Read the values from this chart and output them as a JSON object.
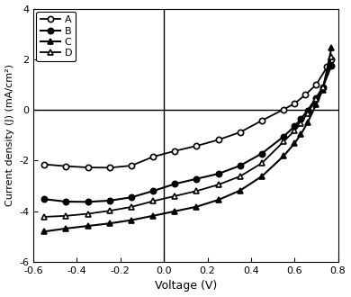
{
  "xlabel": "Voltage (V)",
  "ylabel": "Current density (J) (mA/cm²)",
  "xlim": [
    -0.6,
    0.8
  ],
  "ylim": [
    -6,
    4
  ],
  "xticks": [
    -0.6,
    -0.4,
    -0.2,
    0.0,
    0.2,
    0.4,
    0.6,
    0.8
  ],
  "yticks": [
    -6,
    -4,
    -2,
    0,
    2,
    4
  ],
  "series": {
    "A": {
      "x": [
        -0.55,
        -0.45,
        -0.35,
        -0.25,
        -0.15,
        -0.05,
        0.05,
        0.15,
        0.25,
        0.35,
        0.45,
        0.55,
        0.6,
        0.65,
        0.7,
        0.75,
        0.77
      ],
      "y": [
        -2.15,
        -2.22,
        -2.27,
        -2.28,
        -2.2,
        -1.85,
        -1.62,
        -1.42,
        -1.18,
        -0.88,
        -0.42,
        0.02,
        0.25,
        0.6,
        1.0,
        1.7,
        2.0
      ],
      "marker": "o",
      "filled": false,
      "color": "#000000",
      "linewidth": 1.3,
      "markersize": 4.5
    },
    "B": {
      "x": [
        -0.55,
        -0.45,
        -0.35,
        -0.25,
        -0.15,
        -0.05,
        0.05,
        0.15,
        0.25,
        0.35,
        0.45,
        0.55,
        0.6,
        0.63,
        0.66,
        0.7,
        0.73,
        0.77
      ],
      "y": [
        -3.52,
        -3.62,
        -3.63,
        -3.58,
        -3.45,
        -3.2,
        -2.92,
        -2.72,
        -2.52,
        -2.2,
        -1.72,
        -1.05,
        -0.65,
        -0.35,
        -0.02,
        0.48,
        0.9,
        1.75
      ],
      "marker": "o",
      "filled": true,
      "color": "#000000",
      "linewidth": 1.5,
      "markersize": 4.5
    },
    "C": {
      "x": [
        -0.55,
        -0.45,
        -0.35,
        -0.25,
        -0.15,
        -0.05,
        0.05,
        0.15,
        0.25,
        0.35,
        0.45,
        0.55,
        0.6,
        0.63,
        0.66,
        0.7,
        0.73,
        0.77
      ],
      "y": [
        -4.8,
        -4.68,
        -4.58,
        -4.48,
        -4.35,
        -4.18,
        -4.0,
        -3.82,
        -3.55,
        -3.18,
        -2.62,
        -1.82,
        -1.32,
        -0.95,
        -0.5,
        0.22,
        0.8,
        2.45
      ],
      "marker": "^",
      "filled": true,
      "color": "#000000",
      "linewidth": 1.5,
      "markersize": 5
    },
    "D": {
      "x": [
        -0.55,
        -0.45,
        -0.35,
        -0.25,
        -0.15,
        -0.05,
        0.05,
        0.15,
        0.25,
        0.35,
        0.45,
        0.55,
        0.6,
        0.63,
        0.66,
        0.7,
        0.73,
        0.77
      ],
      "y": [
        -4.22,
        -4.18,
        -4.1,
        -3.98,
        -3.83,
        -3.6,
        -3.4,
        -3.2,
        -2.95,
        -2.62,
        -2.1,
        -1.25,
        -0.82,
        -0.52,
        -0.12,
        0.42,
        0.88,
        2.1
      ],
      "marker": "^",
      "filled": false,
      "color": "#000000",
      "linewidth": 1.3,
      "markersize": 5
    }
  },
  "legend_order": [
    "A",
    "B",
    "C",
    "D"
  ],
  "background_color": "#ffffff"
}
